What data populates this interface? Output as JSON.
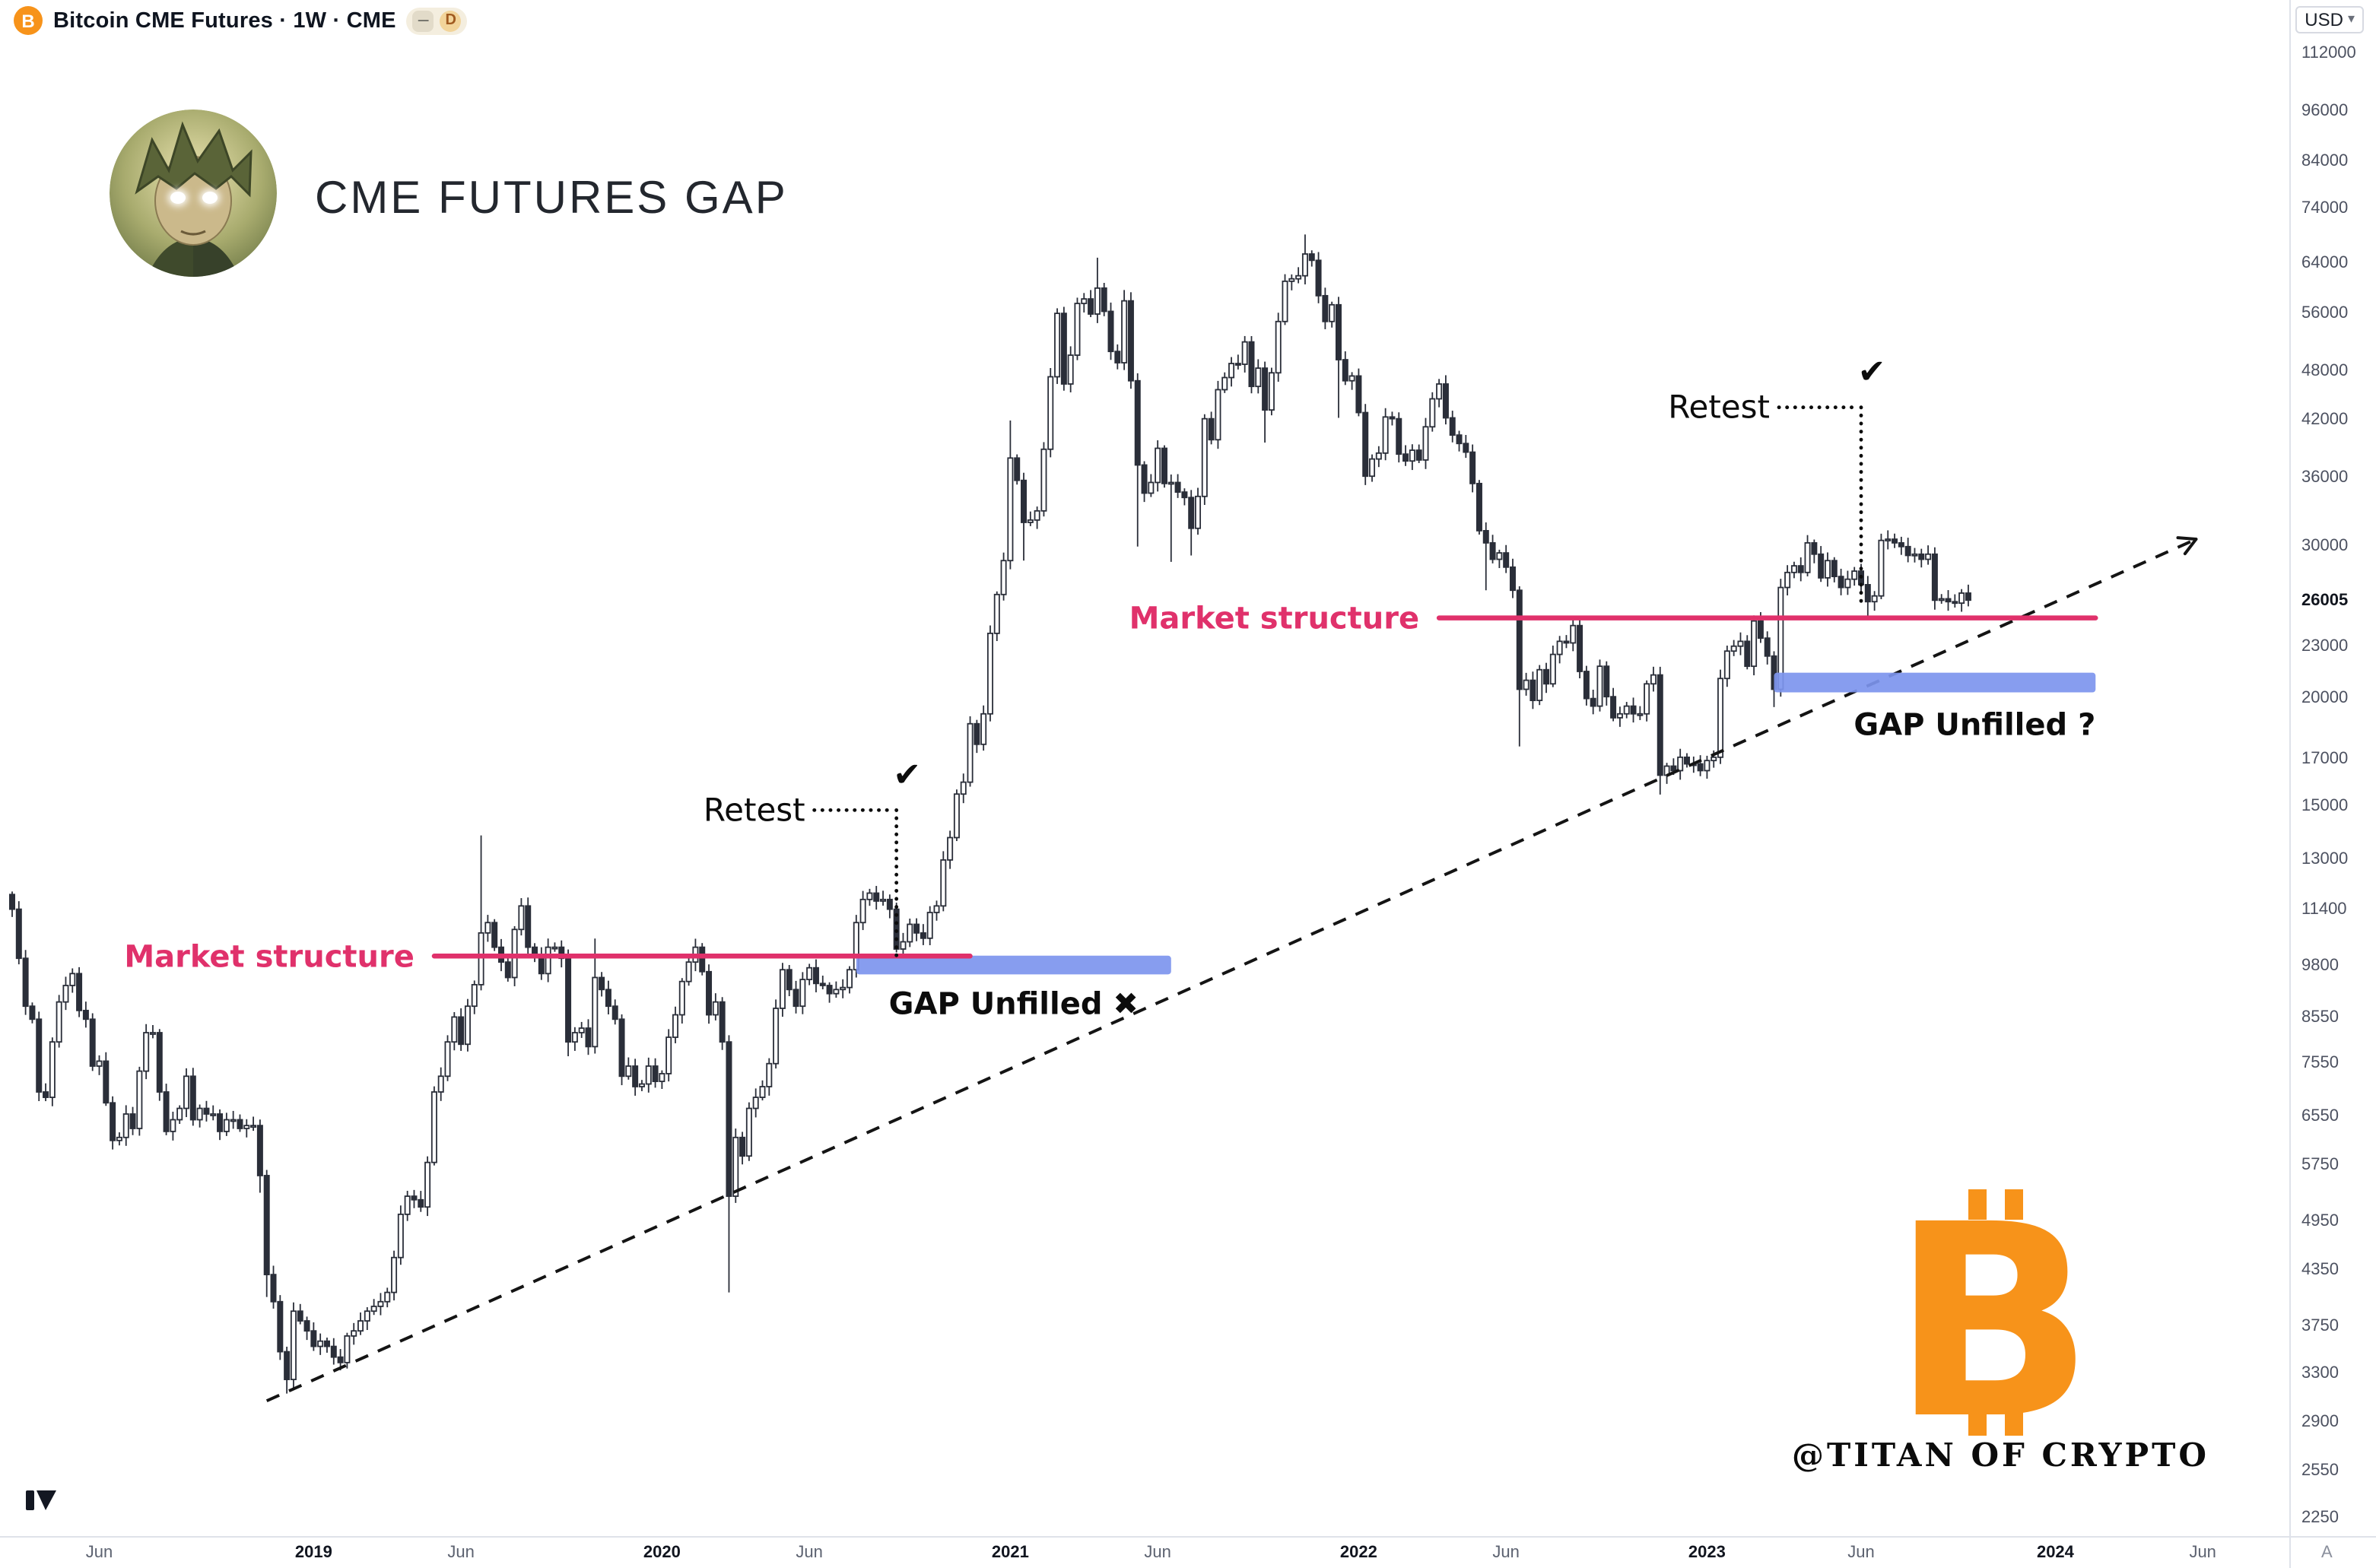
{
  "header": {
    "btc_icon_letter": "B",
    "symbol_title": "Bitcoin CME Futures · 1W · CME",
    "minus_badge": "−",
    "interval_badge": "D",
    "currency": "USD",
    "currency_caret": "▾"
  },
  "overlay": {
    "chart_title": "CME FUTURES GAP",
    "signature": "@TITAN OF CRYPTO",
    "bitcoin_letter": "B"
  },
  "footer": {
    "corner_label": "A"
  },
  "colors": {
    "accent_pink": "#e0316b",
    "gap_blue": "#7d95ee",
    "bitcoin_orange": "#f7931a",
    "candle_dark": "#2a2e39",
    "candle_light": "#ffffff",
    "trend_black": "#141414"
  },
  "chart_data": {
    "type": "candlestick",
    "title": "Bitcoin CME Futures weekly chart with CME gap annotations",
    "timeframe": "1W",
    "y_scale": "log",
    "y_domain": {
      "top": 129000,
      "bottom": 2140
    },
    "current_price": 26005,
    "y_ticks": [
      112000,
      96000,
      84000,
      74000,
      64000,
      56000,
      48000,
      42000,
      36000,
      30000,
      26005,
      23000,
      20000,
      17000,
      15000,
      13000,
      11400,
      9800,
      8550,
      7550,
      6550,
      5750,
      4950,
      4350,
      3750,
      3300,
      2900,
      2550,
      2250
    ],
    "x_ticks": [
      {
        "label": "Jun",
        "week": 13,
        "major": false
      },
      {
        "label": "2019",
        "week": 45,
        "major": true
      },
      {
        "label": "Jun",
        "week": 67,
        "major": false
      },
      {
        "label": "2020",
        "week": 97,
        "major": true
      },
      {
        "label": "Jun",
        "week": 119,
        "major": false
      },
      {
        "label": "2021",
        "week": 149,
        "major": true
      },
      {
        "label": "Jun",
        "week": 171,
        "major": false
      },
      {
        "label": "2022",
        "week": 201,
        "major": true
      },
      {
        "label": "Jun",
        "week": 223,
        "major": false
      },
      {
        "label": "2023",
        "week": 253,
        "major": true
      },
      {
        "label": "Jun",
        "week": 276,
        "major": false
      },
      {
        "label": "2024",
        "week": 305,
        "major": true
      },
      {
        "label": "Jun",
        "week": 327,
        "major": false
      }
    ],
    "weekly_closes": [
      11400,
      10000,
      8800,
      8500,
      7000,
      6900,
      8000,
      8900,
      9300,
      9600,
      8700,
      8500,
      7500,
      7600,
      6800,
      6150,
      6200,
      6600,
      6350,
      7400,
      8200,
      8200,
      7000,
      6300,
      6500,
      6700,
      7300,
      6500,
      6700,
      6600,
      6600,
      6300,
      6500,
      6500,
      6350,
      6400,
      6400,
      [
        5600,
        6500,
        5350
      ],
      [
        4300,
        null,
        4050
      ],
      4000,
      3500,
      [
        3250,
        null,
        3130
      ],
      3900,
      3800,
      3700,
      3550,
      3600,
      3550,
      3450,
      3400,
      3650,
      3700,
      3800,
      3900,
      3950,
      4000,
      4100,
      4500,
      5050,
      5300,
      5250,
      5150,
      5800,
      7000,
      7300,
      8000,
      8550,
      7950,
      8800,
      9320,
      [
        10700,
        13880,
        null
      ],
      11000,
      10300,
      9900,
      9500,
      10800,
      11500,
      10300,
      10100,
      9600,
      10300,
      10300,
      10000,
      [
        8000,
        null,
        7700
      ],
      8200,
      8300,
      7900,
      [
        9500,
        10540,
        null
      ],
      9200,
      8800,
      8500,
      7300,
      7500,
      7100,
      7150,
      7500,
      7200,
      7350,
      8100,
      8600,
      9400,
      9900,
      10300,
      9650,
      8600,
      8900,
      8000,
      [
        5300,
        null,
        4100
      ],
      6200,
      5900,
      6700,
      6900,
      7100,
      7550,
      8750,
      9700,
      9200,
      8800,
      9450,
      9750,
      9350,
      9300,
      9100,
      9200,
      9250,
      9700,
      11000,
      11700,
      11900,
      11650,
      11700,
      11400,
      10250,
      10450,
      10950,
      10700,
      10550,
      11300,
      11500,
      13000,
      13800,
      15500,
      16000,
      18700,
      17700,
      19200,
      23800,
      26400,
      28900,
      [
        38000,
        42000,
        null
      ],
      35800,
      [
        32000,
        null,
        28900
      ],
      32200,
      33000,
      38900,
      47200,
      55900,
      46300,
      50000,
      57400,
      58100,
      55800,
      [
        59800,
        64850,
        null
      ],
      56200,
      50500,
      49000,
      [
        57800,
        59500,
        null
      ],
      46700,
      [
        37300,
        null,
        30000
      ],
      34600,
      35600,
      39000,
      35500,
      [
        35600,
        null,
        28800
      ],
      34700,
      34200,
      [
        31500,
        null,
        29300
      ],
      34300,
      42200,
      39900,
      45600,
      47100,
      48900,
      48800,
      51800,
      46000,
      48300,
      [
        43200,
        null,
        39600
      ],
      47700,
      54700,
      60900,
      61300,
      61800,
      [
        65500,
        69000,
        null
      ],
      64400,
      58600,
      54700,
      57200,
      [
        49400,
        null,
        42300
      ],
      46700,
      47300,
      42900,
      36200,
      37900,
      38500,
      42400,
      42200,
      38400,
      37700,
      38800,
      37800,
      41300,
      44500,
      46300,
      42300,
      40400,
      39500,
      38600,
      35500,
      31300,
      [
        30300,
        null,
        26700
      ],
      29000,
      29500,
      28400,
      26700,
      [
        20500,
        null,
        17600
      ],
      21000,
      19900,
      21600,
      20800,
      22500,
      23300,
      23200,
      24300,
      21500,
      20000,
      19600,
      21800,
      20100,
      19000,
      19200,
      19600,
      19200,
      19200,
      20800,
      21300,
      [
        16300,
        null,
        15480
      ],
      16700,
      16500,
      17100,
      16800,
      16800,
      16500,
      16950,
      17100,
      21100,
      22700,
      23000,
      23300,
      21800,
      24600,
      23500,
      22400,
      [
        20500,
        null,
        19550
      ],
      26900,
      28000,
      28500,
      28000,
      30300,
      29400,
      27600,
      28900,
      27700,
      26900,
      27500,
      28100,
      27100,
      [
        25900,
        null,
        24800
      ],
      26300,
      30500,
      30600,
      30300,
      30000,
      29300,
      29400,
      29000,
      29400,
      [
        26000,
        null,
        25350
      ],
      26100,
      25900,
      25800,
      26500,
      26005
    ],
    "trendline": {
      "from_week": 38,
      "from_price": 3070,
      "to_week": 326,
      "to_price": 30600,
      "style": "dashed",
      "arrow": true
    },
    "levels": [
      {
        "label": "Market structure",
        "price": 10060,
        "week_start": 63,
        "week_end": 143
      },
      {
        "label": "Market structure",
        "price": 24800,
        "week_start": 213,
        "week_end": 311
      }
    ],
    "zones": [
      {
        "label": "GAP Unfilled ✖",
        "week_start": 126,
        "week_end": 173,
        "price_top": 10070,
        "price_bottom": 9580,
        "label_align": "center"
      },
      {
        "label": "GAP Unfilled ?",
        "week_start": 263,
        "week_end": 311,
        "price_top": 21430,
        "price_bottom": 20330,
        "label_align": "right"
      }
    ],
    "retests": [
      {
        "label": "Retest",
        "check": "✔",
        "week": 132,
        "price_top": 14850,
        "price_bottom": 10060
      },
      {
        "label": "Retest",
        "check": "✔",
        "week": 276,
        "price_top": 43500,
        "price_bottom": 25500
      }
    ]
  }
}
